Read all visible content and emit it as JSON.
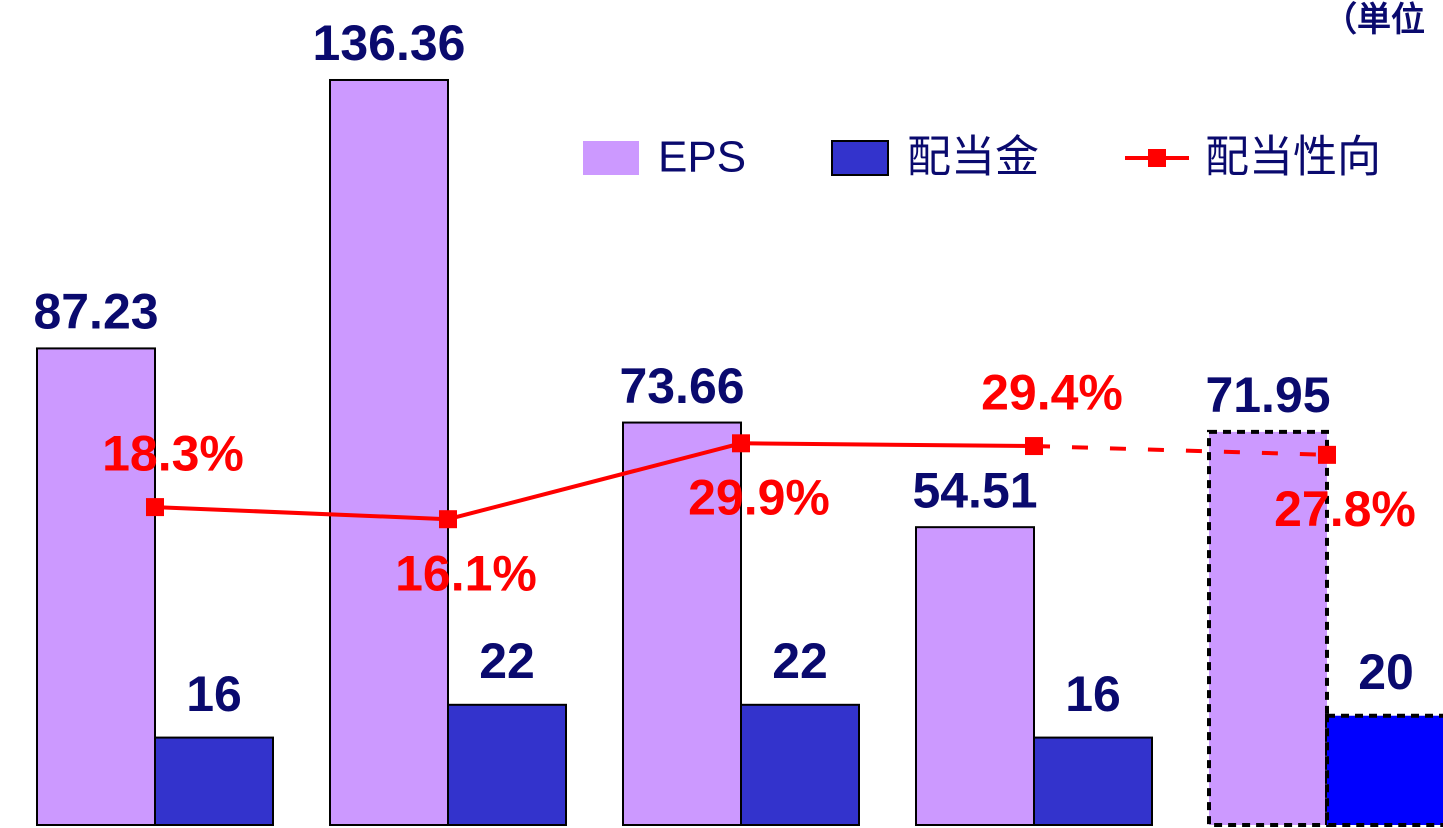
{
  "chart_data": {
    "type": "bar_line",
    "unit_note": "（単位",
    "categories": [
      null,
      null,
      null,
      null,
      null
    ],
    "ylim": [
      0,
      151
    ],
    "y2lim": [
      -39.5,
      110.5
    ],
    "legend": "top-right",
    "series": [
      {
        "name": "EPS",
        "type": "bar",
        "color": "#cc99ff",
        "label_color": "#0a0a6e",
        "values": [
          87.23,
          136.36,
          73.66,
          54.51,
          71.95
        ],
        "styles": [
          "solid",
          "solid",
          "solid",
          "solid",
          "dashed"
        ]
      },
      {
        "name": "配当金",
        "type": "bar",
        "color": "#3333cc",
        "colors": [
          "#3333cc",
          "#3333cc",
          "#3333cc",
          "#3333cc",
          "#0000ff"
        ],
        "label_color": "#0a0a6e",
        "values": [
          16,
          22,
          22,
          16,
          20
        ],
        "styles": [
          "solid",
          "solid",
          "solid",
          "solid",
          "dashed"
        ]
      },
      {
        "name": "配当性向",
        "type": "line",
        "axis": "y2",
        "color": "#ff0000",
        "label_color": "#ff0000",
        "values": [
          18.3,
          16.1,
          29.9,
          29.4,
          27.8
        ],
        "value_labels": [
          "18.3%",
          "16.1%",
          "29.9%",
          "29.4%",
          "27.8%"
        ],
        "label_positions": [
          "above",
          "below",
          "below",
          "above",
          "below"
        ],
        "styles": [
          "solid",
          "solid",
          "solid",
          "solid",
          "dashed"
        ]
      }
    ]
  }
}
